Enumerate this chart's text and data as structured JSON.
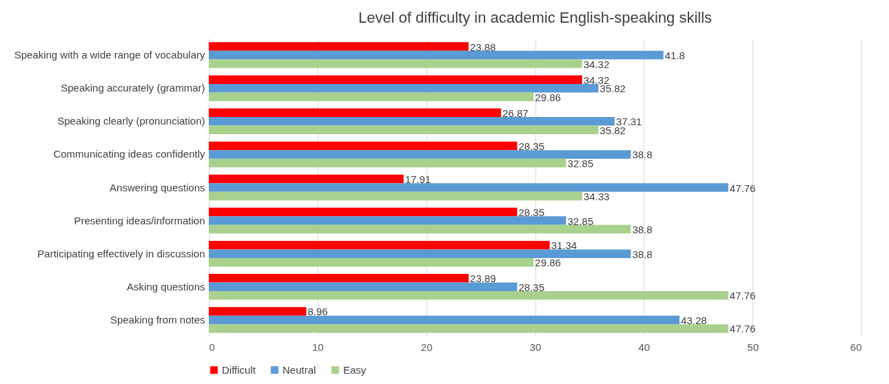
{
  "chart_data": {
    "type": "bar",
    "orientation": "horizontal",
    "title": "Level of difficulty in academic English-speaking skills",
    "categories": [
      "Speaking with a wide range of vocabulary",
      "Speaking accurately (grammar)",
      "Speaking clearly (pronunciation)",
      "Communicating ideas confidently",
      "Answering questions",
      "Presenting ideas/information",
      "Participating effectively in discussion",
      "Asking questions",
      "Speaking from notes"
    ],
    "series": [
      {
        "name": "Difficult",
        "color": "#ff0000",
        "values": [
          23.88,
          34.32,
          26.87,
          28.35,
          17.91,
          28.35,
          31.34,
          23.89,
          8.96
        ]
      },
      {
        "name": "Neutral",
        "color": "#5b9bd5",
        "values": [
          41.8,
          35.82,
          37.31,
          38.8,
          47.76,
          32.85,
          38.8,
          28.35,
          43.28
        ]
      },
      {
        "name": "Easy",
        "color": "#a9d18e",
        "values": [
          34.32,
          29.86,
          35.82,
          32.85,
          34.33,
          38.8,
          29.86,
          47.76,
          47.76
        ]
      }
    ],
    "xlim": [
      0,
      60
    ],
    "xticks": [
      0,
      10,
      20,
      30,
      40,
      50,
      60
    ],
    "grid": "x",
    "legend": "bottom",
    "data_labels": true
  }
}
